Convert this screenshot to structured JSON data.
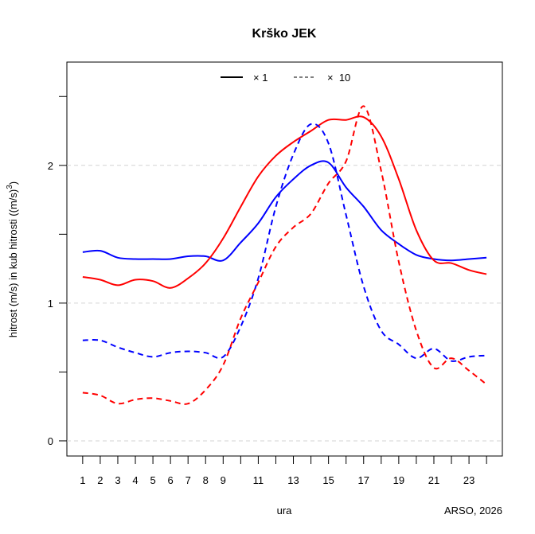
{
  "chart_data": {
    "type": "line",
    "title": "Krško JEK",
    "xlabel": "ura",
    "ylabel": "hitrost (m/s) in kub hitrosti ((m/s)",
    "ylabel_superscript": "3",
    "ylabel_close": ")",
    "credit": "ARSO, 2026",
    "xlim": [
      0.1,
      24.9
    ],
    "ylim": [
      -0.11,
      2.75
    ],
    "x_ticks": [
      1,
      2,
      3,
      4,
      5,
      6,
      7,
      8,
      9,
      10,
      11,
      12,
      13,
      14,
      15,
      16,
      17,
      18,
      19,
      20,
      21,
      22,
      23,
      24
    ],
    "x_tick_labels": [
      "1",
      "2",
      "3",
      "4",
      "5",
      "6",
      "7",
      "8",
      "9",
      "",
      "11",
      "",
      "13",
      "",
      "15",
      "",
      "17",
      "",
      "19",
      "",
      "21",
      "",
      "23",
      ""
    ],
    "y_ticks": [
      0,
      0.5,
      1,
      1.5,
      2,
      2.5
    ],
    "y_tick_labels": [
      "0",
      "",
      "1",
      "",
      "2",
      ""
    ],
    "gridlines_y": [
      0,
      1,
      2
    ],
    "legend": {
      "position": "top",
      "entries": [
        {
          "label": "× 1",
          "style": "solid"
        },
        {
          "label": "×  10",
          "style": "dashed"
        }
      ]
    },
    "x": [
      1,
      2,
      3,
      4,
      5,
      6,
      7,
      8,
      9,
      10,
      11,
      12,
      13,
      14,
      15,
      16,
      17,
      18,
      19,
      20,
      21,
      22,
      23,
      24
    ],
    "series": [
      {
        "name": "blue ×1",
        "color": "#0000ff",
        "style": "solid",
        "values": [
          1.37,
          1.38,
          1.33,
          1.32,
          1.32,
          1.32,
          1.34,
          1.34,
          1.31,
          1.44,
          1.58,
          1.77,
          1.9,
          2.0,
          2.02,
          1.84,
          1.7,
          1.53,
          1.43,
          1.35,
          1.32,
          1.31,
          1.32,
          1.33
        ]
      },
      {
        "name": "red ×1",
        "color": "#ff0000",
        "style": "solid",
        "values": [
          1.19,
          1.17,
          1.13,
          1.17,
          1.16,
          1.11,
          1.18,
          1.29,
          1.47,
          1.7,
          1.92,
          2.07,
          2.17,
          2.25,
          2.33,
          2.33,
          2.35,
          2.21,
          1.9,
          1.53,
          1.31,
          1.29,
          1.24,
          1.21
        ]
      },
      {
        "name": "blue ×10",
        "color": "#0000ff",
        "style": "dashed",
        "values": [
          0.73,
          0.73,
          0.68,
          0.64,
          0.61,
          0.64,
          0.65,
          0.64,
          0.61,
          0.83,
          1.18,
          1.7,
          2.08,
          2.3,
          2.16,
          1.64,
          1.12,
          0.8,
          0.7,
          0.6,
          0.67,
          0.58,
          0.61,
          0.62
        ]
      },
      {
        "name": "red ×10",
        "color": "#ff0000",
        "style": "dashed",
        "values": [
          0.35,
          0.33,
          0.27,
          0.3,
          0.31,
          0.29,
          0.27,
          0.37,
          0.55,
          0.89,
          1.15,
          1.41,
          1.55,
          1.65,
          1.87,
          2.03,
          2.43,
          1.96,
          1.3,
          0.8,
          0.53,
          0.6,
          0.51,
          0.41
        ]
      }
    ]
  }
}
